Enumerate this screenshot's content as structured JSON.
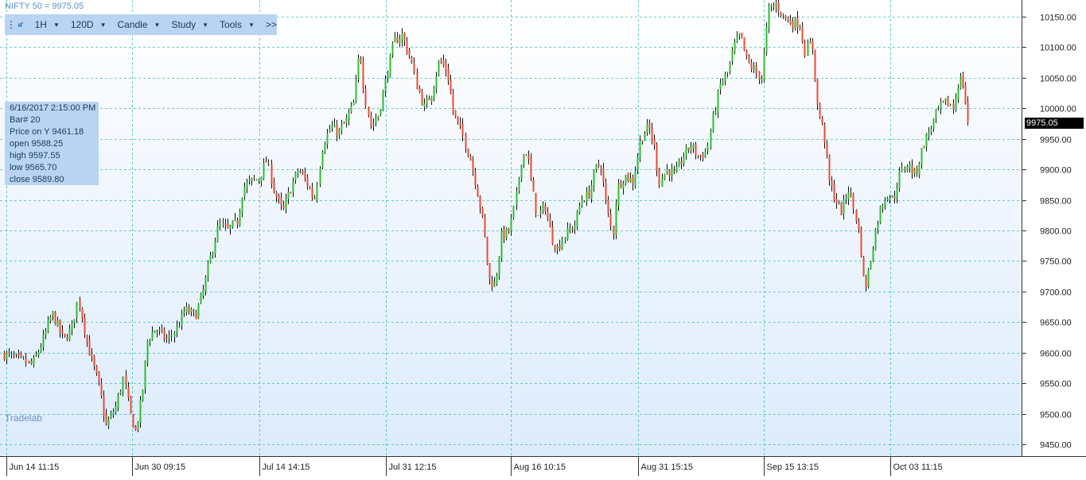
{
  "title": "NIFTY 50 = 9975.05",
  "toolbar": {
    "interval": "1H",
    "range": "120D",
    "chart_type": "Candle",
    "study": "Study",
    "tools": "Tools",
    "more": ">>"
  },
  "info_box": {
    "datetime": "6/16/2017 2:15:00 PM",
    "bar": "Bar# 20",
    "price_on_y": "Price on Y  9461.18",
    "open": "open  9588.25",
    "high": "high  9597.55",
    "low": "low  9565.70",
    "close": "close  9589.80"
  },
  "watermark": "Tradelab",
  "last_price": "9975.05",
  "colors": {
    "up": "#2ebd2e",
    "down": "#ef4a2e",
    "wick": "#111111",
    "grid": "#3cbdbd"
  },
  "chart_data": {
    "type": "candlestick",
    "title": "NIFTY 50 = 9975.05",
    "ylim": [
      9420,
      10175
    ],
    "y_ticks": [
      9450,
      9500,
      9550,
      9600,
      9650,
      9700,
      9750,
      9800,
      9850,
      9900,
      9950,
      10000,
      10050,
      10100,
      10150
    ],
    "x_ticks": [
      "Jun 14 11:15",
      "Jun 30 09:15",
      "Jul 14 14:15",
      "Jul 31 12:15",
      "Aug 16 10:15",
      "Aug 31 15:15",
      "Sep 15 13:15",
      "Oct 03 11:15"
    ],
    "grid": true,
    "last_price": 9975.05,
    "close_path": [
      [
        0,
        9600
      ],
      [
        20,
        9590
      ],
      [
        40,
        9580
      ],
      [
        55,
        9625
      ],
      [
        65,
        9665
      ],
      [
        80,
        9620
      ],
      [
        90,
        9640
      ],
      [
        98,
        9690
      ],
      [
        110,
        9610
      ],
      [
        125,
        9540
      ],
      [
        133,
        9480
      ],
      [
        145,
        9510
      ],
      [
        155,
        9560
      ],
      [
        163,
        9500
      ],
      [
        170,
        9470
      ],
      [
        178,
        9530
      ],
      [
        185,
        9620
      ],
      [
        195,
        9640
      ],
      [
        210,
        9620
      ],
      [
        222,
        9640
      ],
      [
        232,
        9670
      ],
      [
        245,
        9660
      ],
      [
        255,
        9700
      ],
      [
        265,
        9760
      ],
      [
        275,
        9810
      ],
      [
        285,
        9800
      ],
      [
        298,
        9815
      ],
      [
        305,
        9870
      ],
      [
        315,
        9880
      ],
      [
        325,
        9885
      ],
      [
        335,
        9915
      ],
      [
        345,
        9860
      ],
      [
        355,
        9830
      ],
      [
        365,
        9870
      ],
      [
        375,
        9900
      ],
      [
        385,
        9880
      ],
      [
        395,
        9850
      ],
      [
        405,
        9940
      ],
      [
        415,
        9970
      ],
      [
        425,
        9960
      ],
      [
        435,
        9980
      ],
      [
        445,
        10010
      ],
      [
        452,
        10100
      ],
      [
        458,
        10020
      ],
      [
        466,
        9970
      ],
      [
        475,
        9990
      ],
      [
        485,
        10050
      ],
      [
        495,
        10110
      ],
      [
        505,
        10120
      ],
      [
        515,
        10085
      ],
      [
        523,
        10040
      ],
      [
        533,
        10000
      ],
      [
        543,
        10030
      ],
      [
        552,
        10080
      ],
      [
        562,
        10060
      ],
      [
        570,
        9990
      ],
      [
        580,
        9960
      ],
      [
        590,
        9920
      ],
      [
        597,
        9880
      ],
      [
        603,
        9840
      ],
      [
        608,
        9800
      ],
      [
        614,
        9720
      ],
      [
        622,
        9710
      ],
      [
        630,
        9790
      ],
      [
        640,
        9800
      ],
      [
        648,
        9850
      ],
      [
        655,
        9920
      ],
      [
        662,
        9930
      ],
      [
        668,
        9870
      ],
      [
        675,
        9820
      ],
      [
        685,
        9840
      ],
      [
        693,
        9790
      ],
      [
        700,
        9770
      ],
      [
        708,
        9790
      ],
      [
        715,
        9800
      ],
      [
        722,
        9810
      ],
      [
        730,
        9850
      ],
      [
        740,
        9860
      ],
      [
        748,
        9900
      ],
      [
        755,
        9910
      ],
      [
        762,
        9840
      ],
      [
        770,
        9790
      ],
      [
        775,
        9870
      ],
      [
        785,
        9890
      ],
      [
        795,
        9880
      ],
      [
        805,
        9950
      ],
      [
        815,
        9970
      ],
      [
        822,
        9940
      ],
      [
        828,
        9880
      ],
      [
        838,
        9900
      ],
      [
        848,
        9890
      ],
      [
        858,
        9920
      ],
      [
        868,
        9940
      ],
      [
        878,
        9920
      ],
      [
        888,
        9930
      ],
      [
        895,
        9980
      ],
      [
        905,
        10040
      ],
      [
        915,
        10060
      ],
      [
        922,
        10100
      ],
      [
        930,
        10120
      ],
      [
        938,
        10080
      ],
      [
        948,
        10060
      ],
      [
        957,
        10050
      ],
      [
        965,
        10160
      ],
      [
        975,
        10170
      ],
      [
        985,
        10150
      ],
      [
        995,
        10140
      ],
      [
        1005,
        10140
      ],
      [
        1012,
        10090
      ],
      [
        1020,
        10110
      ],
      [
        1027,
        10000
      ],
      [
        1035,
        9960
      ],
      [
        1042,
        9880
      ],
      [
        1050,
        9850
      ],
      [
        1058,
        9830
      ],
      [
        1066,
        9870
      ],
      [
        1074,
        9830
      ],
      [
        1080,
        9790
      ],
      [
        1086,
        9700
      ],
      [
        1092,
        9740
      ],
      [
        1100,
        9800
      ],
      [
        1107,
        9840
      ],
      [
        1115,
        9860
      ],
      [
        1123,
        9850
      ],
      [
        1130,
        9890
      ],
      [
        1140,
        9910
      ],
      [
        1150,
        9890
      ],
      [
        1160,
        9940
      ],
      [
        1170,
        9970
      ],
      [
        1180,
        10000
      ],
      [
        1190,
        10010
      ],
      [
        1198,
        10000
      ],
      [
        1205,
        10050
      ],
      [
        1210,
        10040
      ],
      [
        1216,
        9975
      ]
    ]
  }
}
